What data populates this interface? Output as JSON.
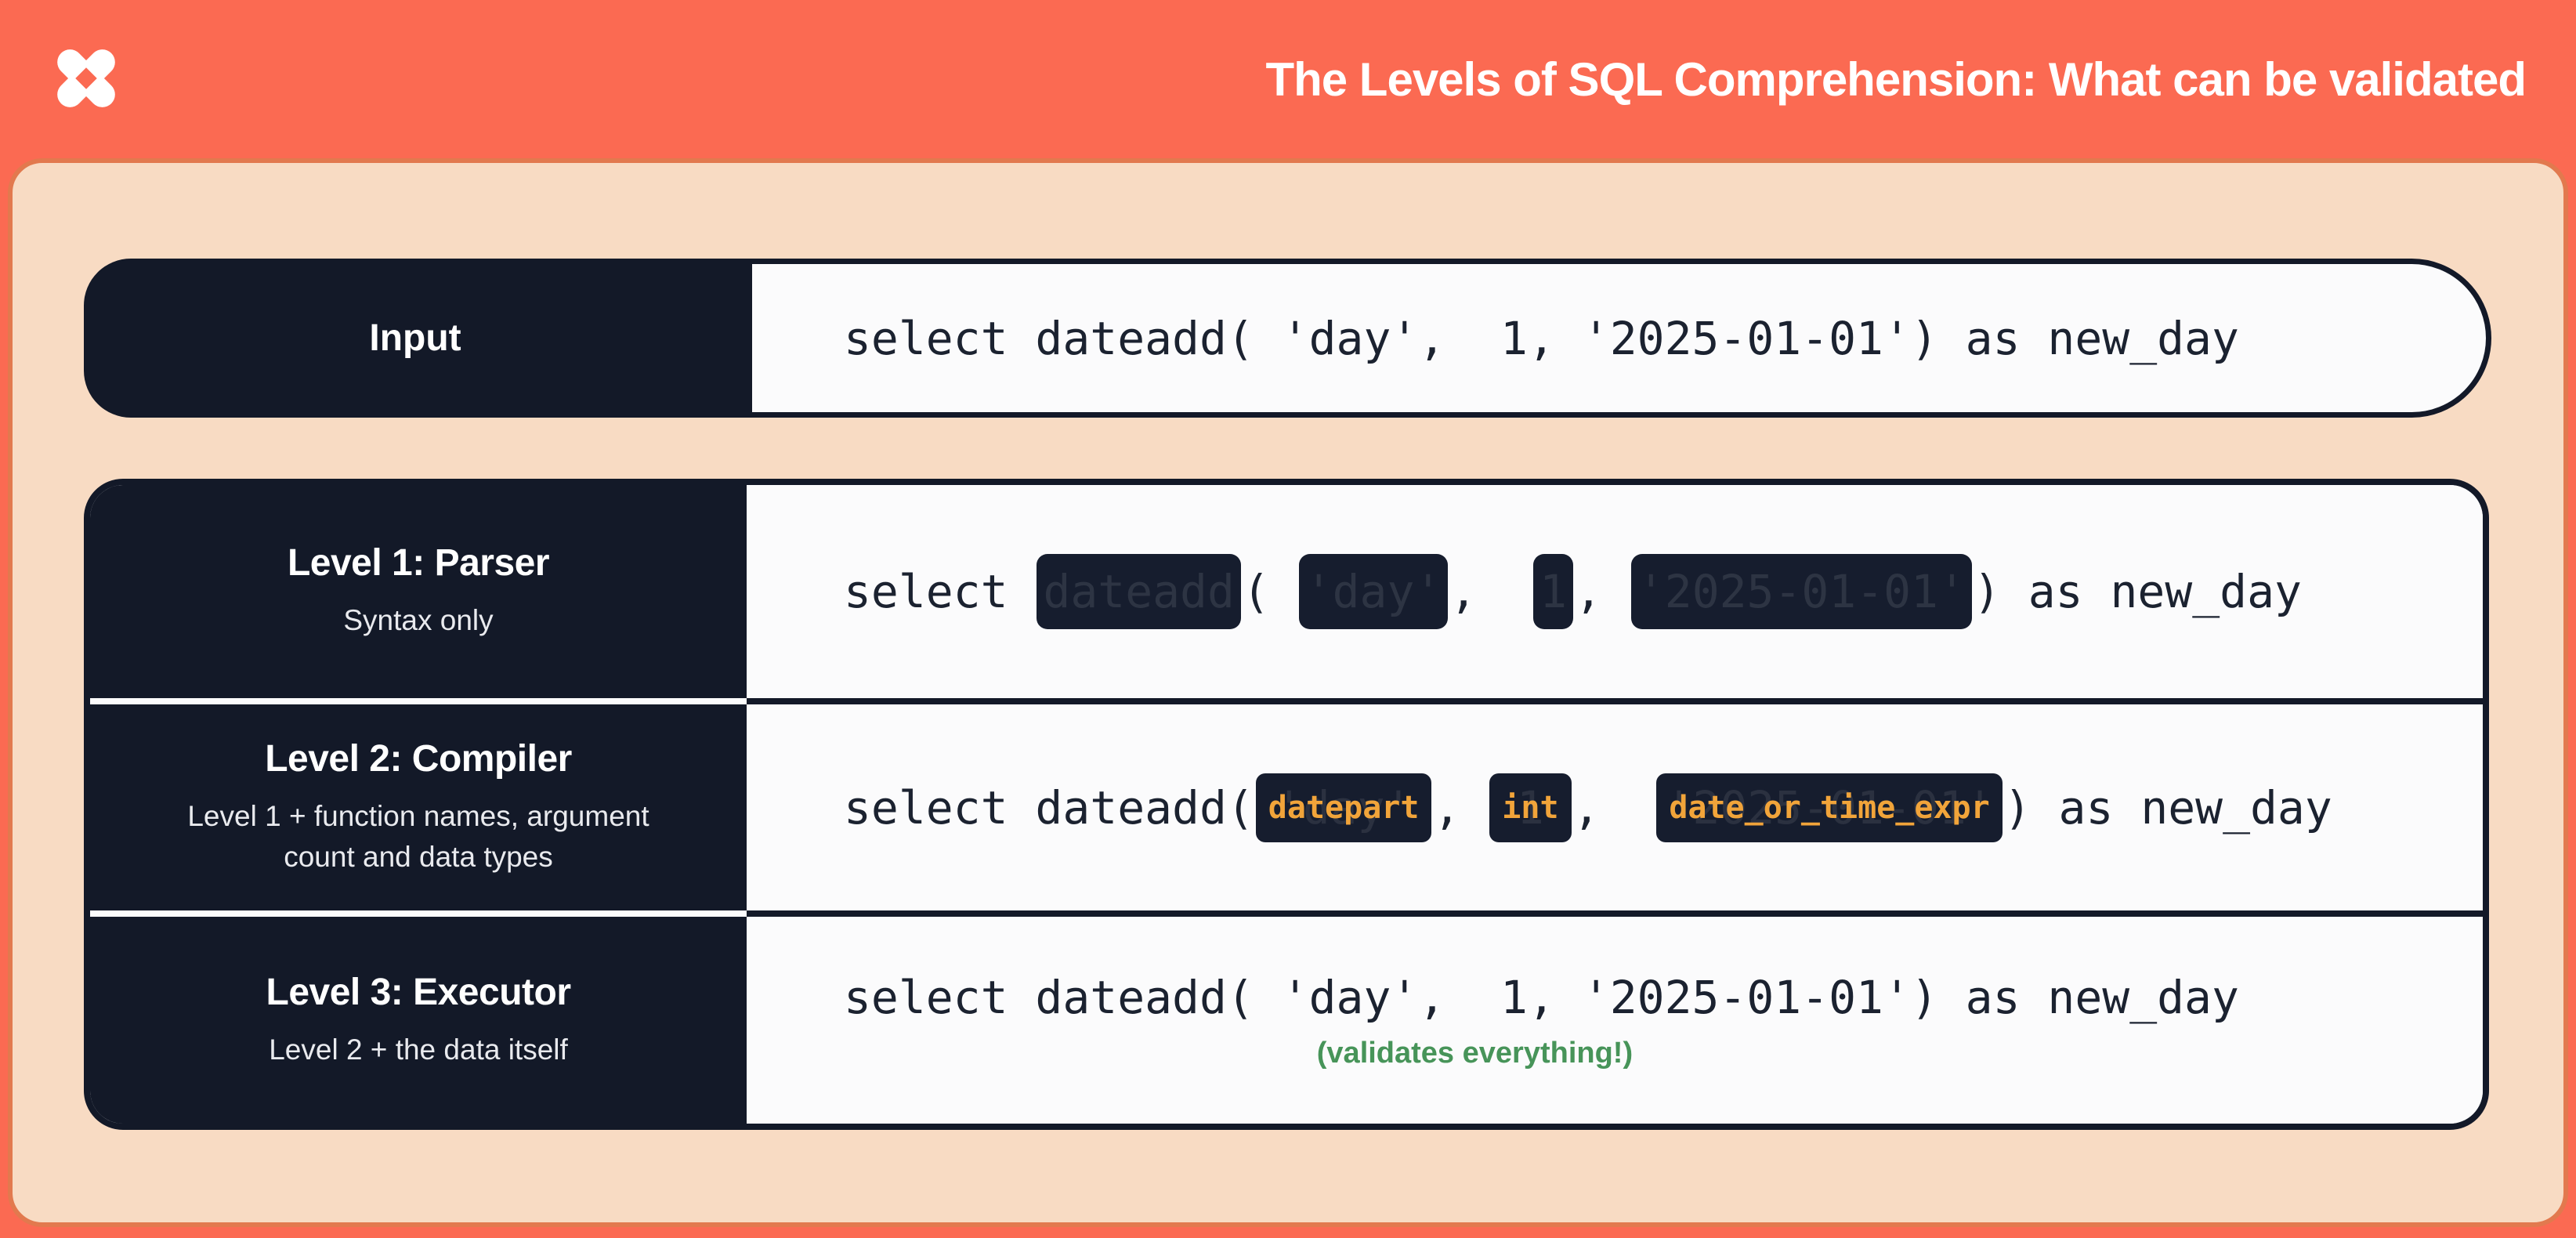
{
  "header": {
    "title": "The Levels of SQL Comprehension: What can be validated",
    "logo": "dbt-logo"
  },
  "palette": {
    "coral": "#FB6A52",
    "peach": "#F8DBC3",
    "navy": "#131928",
    "off_white": "#FBFBFC",
    "token_orange": "#F1A43A",
    "note_green": "#479459"
  },
  "input_row": {
    "label": "Input",
    "code": "select dateadd( 'day',  1, '2025-01-01') as new_day"
  },
  "levels": [
    {
      "title": "Level 1: Parser",
      "subtitle": "Syntax only",
      "segments": [
        {
          "t": "text",
          "v": "select "
        },
        {
          "t": "redacted",
          "v": "dateadd"
        },
        {
          "t": "text",
          "v": "( "
        },
        {
          "t": "redacted",
          "v": "'day'"
        },
        {
          "t": "text",
          "v": ",  "
        },
        {
          "t": "redacted",
          "v": "1"
        },
        {
          "t": "text",
          "v": ", "
        },
        {
          "t": "redacted",
          "v": "'2025-01-01'"
        },
        {
          "t": "text",
          "v": ") as new_day"
        }
      ]
    },
    {
      "title": "Level 2: Compiler",
      "subtitle": "Level 1 + function names, argument count and data types",
      "segments": [
        {
          "t": "text",
          "v": "select dateadd("
        },
        {
          "t": "token",
          "v": "datepart",
          "ghost": "'day'"
        },
        {
          "t": "text",
          "v": ", "
        },
        {
          "t": "token",
          "v": "int",
          "ghost": "1"
        },
        {
          "t": "text",
          "v": ",  "
        },
        {
          "t": "token",
          "v": "date_or_time_expr",
          "ghost": "'2025-01-01'"
        },
        {
          "t": "text",
          "v": ") as new_day"
        }
      ]
    },
    {
      "title": "Level 3: Executor",
      "subtitle": "Level 2 + the data itself",
      "segments": [
        {
          "t": "text",
          "v": "select dateadd( 'day',  1, '2025-01-01') as new_day"
        }
      ],
      "note": "(validates everything!)"
    }
  ]
}
